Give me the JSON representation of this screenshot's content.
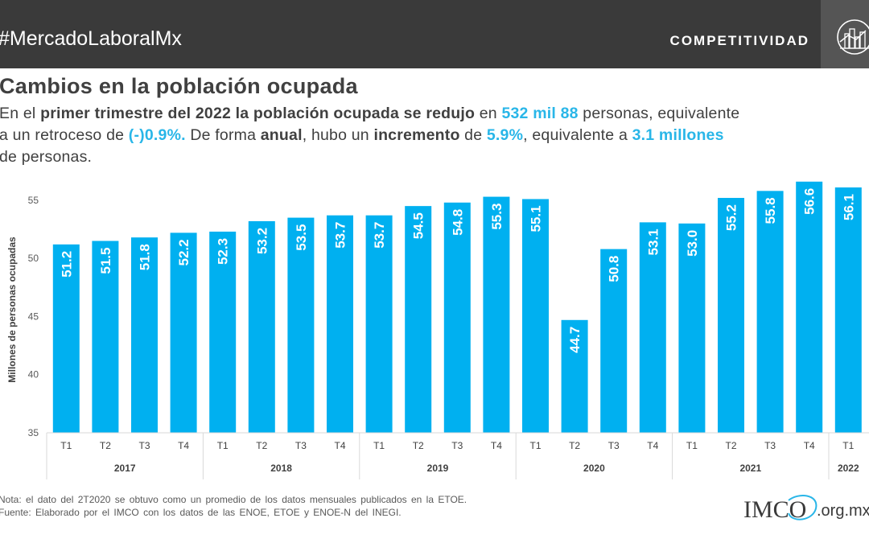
{
  "header": {
    "hashtag": "#MercadoLaboralMx",
    "section": "COMPETITIVIDAD",
    "icon": "city-skyline-icon"
  },
  "title": "Cambios en la población ocupada",
  "description": {
    "line1": [
      {
        "t": "En el ",
        "s": "n"
      },
      {
        "t": "primer trimestre del 2022 la población ocupada se redujo",
        "s": "b"
      },
      {
        "t": " en ",
        "s": "n"
      },
      {
        "t": "532 mil 88",
        "s": "h"
      },
      {
        "t": " personas, equivalente",
        "s": "n"
      }
    ],
    "line2": [
      {
        "t": "a un retroceso de ",
        "s": "n"
      },
      {
        "t": "(-)0.9%.",
        "s": "h"
      },
      {
        "t": " De forma ",
        "s": "n"
      },
      {
        "t": "anual",
        "s": "b"
      },
      {
        "t": ", hubo un ",
        "s": "n"
      },
      {
        "t": "incremento",
        "s": "b"
      },
      {
        "t": " de ",
        "s": "n"
      },
      {
        "t": "5.9%",
        "s": "h"
      },
      {
        "t": ", equivalente a ",
        "s": "n"
      },
      {
        "t": "3.1 millones",
        "s": "h"
      }
    ],
    "line3": [
      {
        "t": "de personas.",
        "s": "n"
      }
    ]
  },
  "chart_data": {
    "type": "bar",
    "ylabel": "Millones de personas ocupadas",
    "ylim": [
      35,
      57
    ],
    "yticks": [
      35,
      40,
      45,
      50,
      55
    ],
    "bar_color": "#00b0f0",
    "label_color": "#ffffff",
    "categories": [
      "T1",
      "T2",
      "T3",
      "T4",
      "T1",
      "T2",
      "T3",
      "T4",
      "T1",
      "T2",
      "T3",
      "T4",
      "T1",
      "T2",
      "T3",
      "T4",
      "T1",
      "T2",
      "T3",
      "T4",
      "T1"
    ],
    "groups": [
      {
        "year": "2017",
        "count": 4
      },
      {
        "year": "2018",
        "count": 4
      },
      {
        "year": "2019",
        "count": 4
      },
      {
        "year": "2020",
        "count": 4
      },
      {
        "year": "2021",
        "count": 4
      },
      {
        "year": "2022",
        "count": 1
      }
    ],
    "values": [
      51.2,
      51.5,
      51.8,
      52.2,
      52.3,
      53.2,
      53.5,
      53.7,
      53.7,
      54.5,
      54.8,
      55.3,
      55.1,
      44.7,
      50.8,
      53.1,
      53.0,
      55.2,
      55.8,
      56.6,
      56.1
    ],
    "data_labels": [
      "51.2",
      "51.5",
      "51.8",
      "52.2",
      "52.3",
      "53.2",
      "53.5",
      "53.7",
      "53.7",
      "54.5",
      "54.8",
      "55.3",
      "55.1",
      "44.7",
      "50.8",
      "53.1",
      "53.0",
      "55.2",
      "55.8",
      "56.6",
      "56.1"
    ]
  },
  "notes": {
    "line1": "Nota: el dato del 2T2020 se obtuvo como un promedio de los datos mensuales publicados en la ETOE.",
    "line2": "Fuente: Elaborado por el IMCO con los datos de las ENOE, ETOE y ENOE-N del INEGI."
  },
  "logo": {
    "name": "IMCO",
    "suffix": ".org.mx"
  }
}
